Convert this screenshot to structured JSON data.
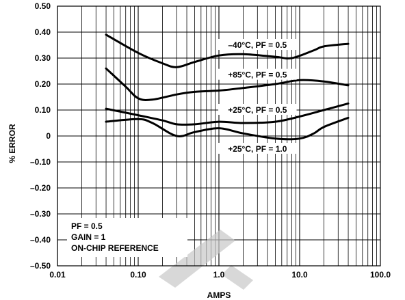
{
  "chart_data": {
    "type": "line",
    "x_scale": "log",
    "xlim": [
      0.01,
      100
    ],
    "ylim": [
      -0.5,
      0.5
    ],
    "xlabel": "AMPS",
    "ylabel": "% ERROR",
    "x_ticks": [
      {
        "value": 0.01,
        "label": "0.01"
      },
      {
        "value": 0.1,
        "label": "0.10"
      },
      {
        "value": 1,
        "label": "1.0"
      },
      {
        "value": 10,
        "label": "10.0"
      },
      {
        "value": 100,
        "label": "100.0"
      }
    ],
    "y_ticks": [
      {
        "value": 0.5,
        "label": "0.50"
      },
      {
        "value": 0.4,
        "label": "0.40"
      },
      {
        "value": 0.3,
        "label": "0.30"
      },
      {
        "value": 0.2,
        "label": "0.20"
      },
      {
        "value": 0.1,
        "label": "0.10"
      },
      {
        "value": 0,
        "label": "0"
      },
      {
        "value": -0.1,
        "label": "–0.10"
      },
      {
        "value": -0.2,
        "label": "–0.20"
      },
      {
        "value": -0.3,
        "label": "–0.30"
      },
      {
        "value": -0.4,
        "label": "–0.40"
      },
      {
        "value": -0.5,
        "label": "–0.50"
      }
    ],
    "grid": true,
    "series": [
      {
        "name": "–40°C, PF = 0.5",
        "x": [
          0.04,
          0.1,
          0.2,
          0.3,
          0.5,
          1,
          2,
          5,
          8,
          15,
          20,
          40
        ],
        "y": [
          0.39,
          0.32,
          0.28,
          0.265,
          0.285,
          0.31,
          0.315,
          0.305,
          0.3,
          0.33,
          0.345,
          0.355
        ]
      },
      {
        "name": "+85°C, PF = 0.5",
        "x": [
          0.04,
          0.07,
          0.1,
          0.15,
          0.3,
          0.5,
          1,
          2,
          5,
          10,
          20,
          40
        ],
        "y": [
          0.26,
          0.19,
          0.145,
          0.14,
          0.16,
          0.17,
          0.175,
          0.185,
          0.2,
          0.215,
          0.21,
          0.195
        ]
      },
      {
        "name": "+25°C, PF = 0.5",
        "x": [
          0.04,
          0.1,
          0.2,
          0.3,
          0.5,
          1,
          2,
          5,
          10,
          20,
          40
        ],
        "y": [
          0.105,
          0.08,
          0.06,
          0.045,
          0.045,
          0.055,
          0.05,
          0.055,
          0.075,
          0.1,
          0.125
        ]
      },
      {
        "name": "+25°C, PF = 1.0",
        "x": [
          0.04,
          0.1,
          0.15,
          0.3,
          0.5,
          1,
          2,
          5,
          10,
          15,
          20,
          40
        ],
        "y": [
          0.055,
          0.065,
          0.05,
          0.0,
          0.015,
          0.03,
          0.01,
          -0.01,
          -0.01,
          0.01,
          0.035,
          0.07
        ]
      }
    ],
    "series_label_positions": [
      {
        "x": 3.0,
        "y": 0.35
      },
      {
        "x": 3.0,
        "y": 0.235
      },
      {
        "x": 3.0,
        "y": 0.1
      },
      {
        "x": 3.0,
        "y": -0.05
      }
    ],
    "annotations": [
      "PF = 0.5",
      "GAIN = 1",
      "ON-CHIP REFERENCE"
    ],
    "colors": {
      "line": "#000000",
      "grid": "#000000",
      "background": "#ffffff",
      "watermark": "#c8c8c8"
    }
  }
}
